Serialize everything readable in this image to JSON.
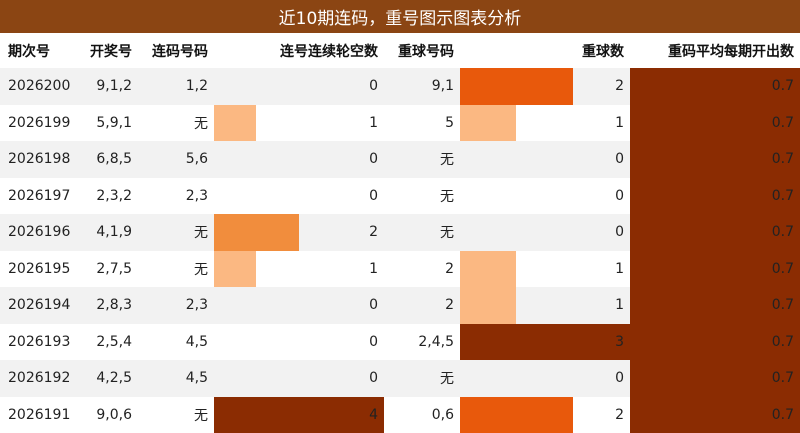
{
  "title": "近10期连码，重号图示图表分析",
  "headers": {
    "period": "期次号",
    "draw": "开奖号",
    "adjacent": "连码号码",
    "gap": "连号连续轮空数",
    "repeat": "重球号码",
    "repeat_count": "重球数",
    "avg": "重码平均每期开出数"
  },
  "colors": {
    "title_bg": "#8b4513",
    "heat_1": "#fbb882",
    "heat_2": "#f18d3d",
    "heat_2b": "#e8590c",
    "heat_3": "#8b2c02",
    "row_alt": "#f2f2f2"
  },
  "rows": [
    {
      "period": "2026200",
      "draw": "9,1,2",
      "adjacent": "1,2",
      "gap": "0",
      "repeat": "9,1",
      "repeat_count": "2",
      "avg": "0.7"
    },
    {
      "period": "2026199",
      "draw": "5,9,1",
      "adjacent": "无",
      "gap": "1",
      "repeat": "5",
      "repeat_count": "1",
      "avg": "0.7"
    },
    {
      "period": "2026198",
      "draw": "6,8,5",
      "adjacent": "5,6",
      "gap": "0",
      "repeat": "无",
      "repeat_count": "0",
      "avg": "0.7"
    },
    {
      "period": "2026197",
      "draw": "2,3,2",
      "adjacent": "2,3",
      "gap": "0",
      "repeat": "无",
      "repeat_count": "0",
      "avg": "0.7"
    },
    {
      "period": "2026196",
      "draw": "4,1,9",
      "adjacent": "无",
      "gap": "2",
      "repeat": "无",
      "repeat_count": "0",
      "avg": "0.7"
    },
    {
      "period": "2026195",
      "draw": "2,7,5",
      "adjacent": "无",
      "gap": "1",
      "repeat": "2",
      "repeat_count": "1",
      "avg": "0.7"
    },
    {
      "period": "2026194",
      "draw": "2,8,3",
      "adjacent": "2,3",
      "gap": "0",
      "repeat": "2",
      "repeat_count": "1",
      "avg": "0.7"
    },
    {
      "period": "2026193",
      "draw": "2,5,4",
      "adjacent": "4,5",
      "gap": "0",
      "repeat": "2,4,5",
      "repeat_count": "3",
      "avg": "0.7"
    },
    {
      "period": "2026192",
      "draw": "4,2,5",
      "adjacent": "4,5",
      "gap": "0",
      "repeat": "无",
      "repeat_count": "0",
      "avg": "0.7"
    },
    {
      "period": "2026191",
      "draw": "9,0,6",
      "adjacent": "无",
      "gap": "4",
      "repeat": "0,6",
      "repeat_count": "2",
      "avg": "0.7"
    }
  ]
}
